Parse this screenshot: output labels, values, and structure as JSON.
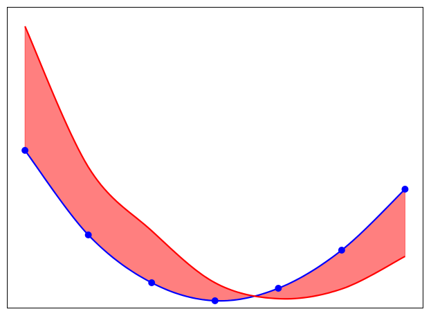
{
  "chart_data": {
    "type": "line",
    "title": "",
    "xlabel": "",
    "ylabel": "",
    "xlim": [
      -0.285,
      6.29
    ],
    "ylim": [
      0,
      4.35
    ],
    "grid": false,
    "ticks_visible": false,
    "x": [
      0,
      1,
      2,
      3,
      4,
      5,
      6
    ],
    "series": [
      {
        "values": [
          2.28,
          1.06,
          0.37,
          0.11,
          0.29,
          0.84,
          1.72
        ],
        "color": "#0000ff",
        "markers": true
      },
      {
        "values": [
          4.07,
          2.04,
          1.12,
          0.37,
          0.14,
          0.28,
          0.75
        ],
        "color": "#ff0000",
        "markers": false
      }
    ],
    "fill_between": {
      "color": "#ff0000",
      "alpha": 0.5
    }
  }
}
